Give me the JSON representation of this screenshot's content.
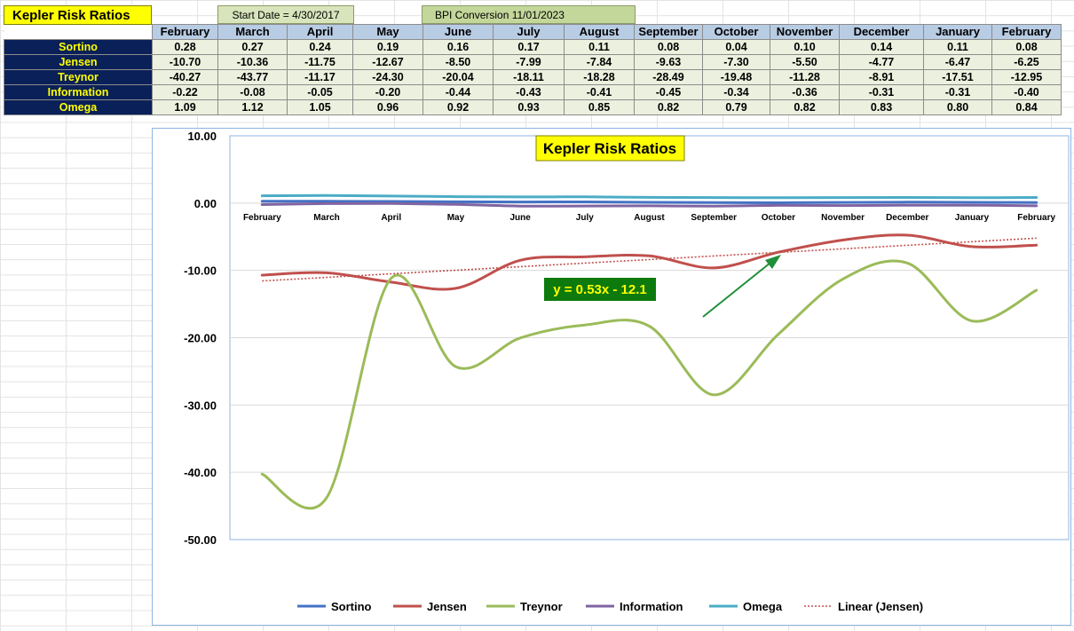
{
  "header": {
    "title": "Kepler Risk Ratios",
    "start_date": "Start Date = 4/30/2017",
    "bpi_conversion": "BPI Conversion 11/01/2023"
  },
  "table": {
    "months": [
      "February",
      "March",
      "April",
      "May",
      "June",
      "July",
      "August",
      "September",
      "October",
      "November",
      "December",
      "January",
      "February"
    ],
    "rows": [
      {
        "name": "Sortino",
        "values": [
          "0.28",
          "0.27",
          "0.24",
          "0.19",
          "0.16",
          "0.17",
          "0.11",
          "0.08",
          "0.04",
          "0.10",
          "0.14",
          "0.11",
          "0.08"
        ]
      },
      {
        "name": "Jensen",
        "values": [
          "-10.70",
          "-10.36",
          "-11.75",
          "-12.67",
          "-8.50",
          "-7.99",
          "-7.84",
          "-9.63",
          "-7.30",
          "-5.50",
          "-4.77",
          "-6.47",
          "-6.25"
        ]
      },
      {
        "name": "Treynor",
        "values": [
          "-40.27",
          "-43.77",
          "-11.17",
          "-24.30",
          "-20.04",
          "-18.11",
          "-18.28",
          "-28.49",
          "-19.48",
          "-11.28",
          "-8.91",
          "-17.51",
          "-12.95"
        ]
      },
      {
        "name": "Information",
        "values": [
          "-0.22",
          "-0.08",
          "-0.05",
          "-0.20",
          "-0.44",
          "-0.43",
          "-0.41",
          "-0.45",
          "-0.34",
          "-0.36",
          "-0.31",
          "-0.31",
          "-0.40"
        ]
      },
      {
        "name": "Omega",
        "values": [
          "1.09",
          "1.12",
          "1.05",
          "0.96",
          "0.92",
          "0.93",
          "0.85",
          "0.82",
          "0.79",
          "0.82",
          "0.83",
          "0.80",
          "0.84"
        ]
      }
    ]
  },
  "chart_data": {
    "type": "line",
    "title": "Kepler Risk Ratios",
    "categories": [
      "February",
      "March",
      "April",
      "May",
      "June",
      "July",
      "August",
      "September",
      "October",
      "November",
      "December",
      "January",
      "February"
    ],
    "ylim": [
      -50,
      10
    ],
    "ytick_labels": [
      "10.00",
      "0.00",
      "-10.00",
      "-20.00",
      "-30.00",
      "-40.00",
      "-50.00"
    ],
    "series": [
      {
        "name": "Sortino",
        "color": "#4472c4",
        "values": [
          0.28,
          0.27,
          0.24,
          0.19,
          0.16,
          0.17,
          0.11,
          0.08,
          0.04,
          0.1,
          0.14,
          0.11,
          0.08
        ]
      },
      {
        "name": "Jensen",
        "color": "#c0504d",
        "values": [
          -10.7,
          -10.36,
          -11.75,
          -12.67,
          -8.5,
          -7.99,
          -7.84,
          -9.63,
          -7.3,
          -5.5,
          -4.77,
          -6.47,
          -6.25
        ]
      },
      {
        "name": "Treynor",
        "color": "#9bbb59",
        "values": [
          -40.27,
          -43.77,
          -11.17,
          -24.3,
          -20.04,
          -18.11,
          -18.28,
          -28.49,
          -19.48,
          -11.28,
          -8.91,
          -17.51,
          -12.95
        ]
      },
      {
        "name": "Information",
        "color": "#8064a2",
        "values": [
          -0.22,
          -0.08,
          -0.05,
          -0.2,
          -0.44,
          -0.43,
          -0.41,
          -0.45,
          -0.34,
          -0.36,
          -0.31,
          -0.31,
          -0.4
        ]
      },
      {
        "name": "Omega",
        "color": "#4bacc6",
        "values": [
          1.09,
          1.12,
          1.05,
          0.96,
          0.92,
          0.93,
          0.85,
          0.82,
          0.79,
          0.82,
          0.83,
          0.8,
          0.84
        ]
      }
    ],
    "trendline": {
      "name": "Linear (Jensen)",
      "color": "#c0504d",
      "slope": 0.53,
      "intercept": -12.1,
      "equation": "y = 0.53x - 12.1"
    },
    "legend_position": "bottom",
    "grid": "horizontal",
    "annotation": {
      "type": "arrow",
      "color": "#1f8f3a"
    }
  }
}
